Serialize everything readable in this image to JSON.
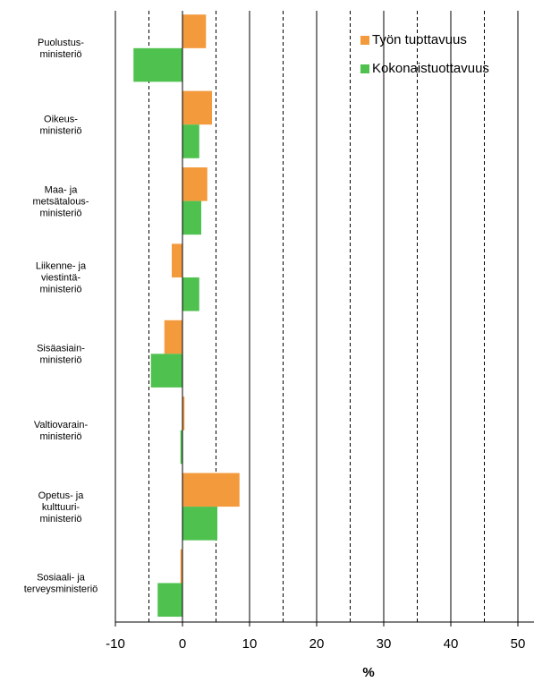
{
  "chart_data": {
    "type": "barh",
    "categories": [
      [
        "Puolustus-",
        "ministeriö"
      ],
      [
        "Oikeus-",
        "ministeriö"
      ],
      [
        "Maa- ja",
        "metsätalous-",
        "ministeriö"
      ],
      [
        "Liikenne- ja",
        "viestintä-",
        "ministeriö"
      ],
      [
        "Sisäasiain-",
        "ministeriö"
      ],
      [
        "Valtiovarain-",
        "ministeriö"
      ],
      [
        "Opetus- ja",
        "kulttuuri-",
        "ministeriö"
      ],
      [
        "Sosiaali- ja",
        "terveysministeriö"
      ]
    ],
    "series": [
      {
        "name": "Työn tuottavuus",
        "color": "#f39a3c",
        "values": [
          3.5,
          4.4,
          3.7,
          -1.6,
          -2.7,
          0.3,
          8.5,
          -0.3
        ]
      },
      {
        "name": "Kokonaistuottavuus",
        "color": "#4fc14f",
        "values": [
          -7.3,
          2.5,
          2.8,
          2.5,
          -4.7,
          -0.3,
          5.2,
          -3.7
        ]
      }
    ],
    "xlabel": "%",
    "xlim": [
      -10,
      52.4
    ],
    "xticks": [
      -10,
      0,
      10,
      20,
      30,
      40,
      50
    ],
    "minor_xticks": [
      -5,
      5,
      15,
      25,
      35,
      45
    ],
    "grid": true,
    "legend": "upper right"
  }
}
